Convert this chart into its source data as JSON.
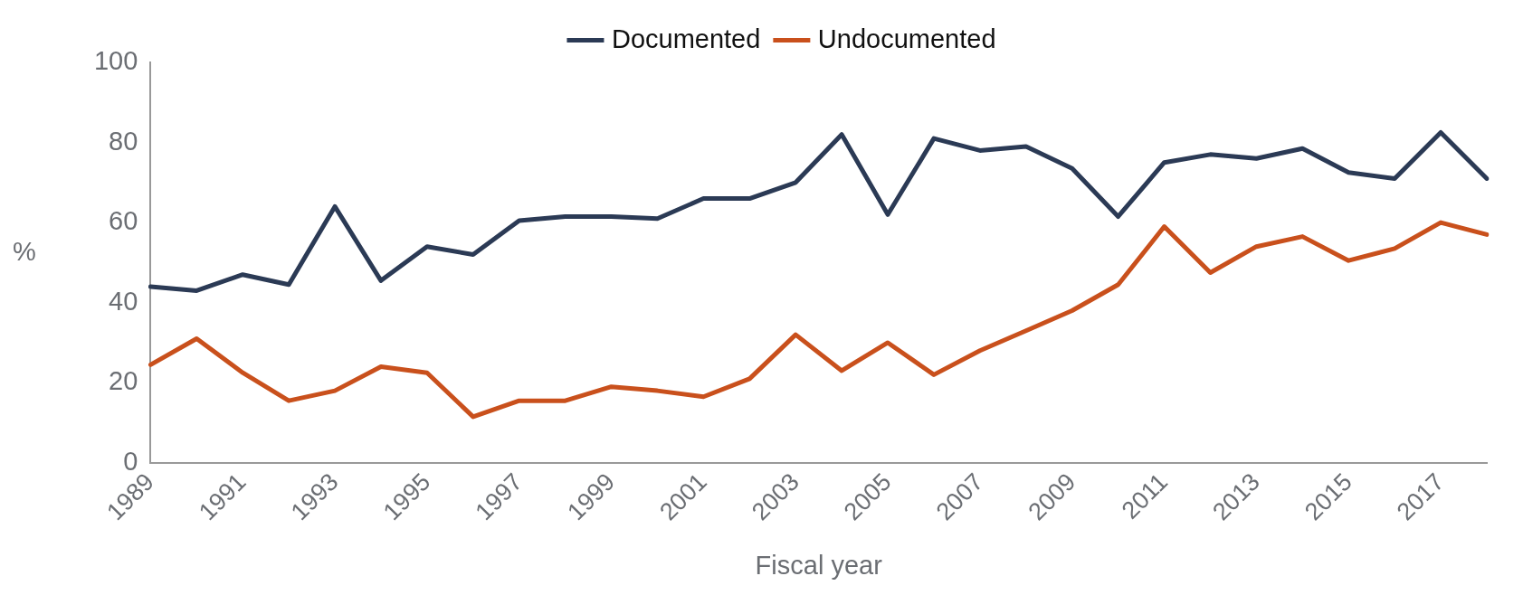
{
  "chart_data": {
    "type": "line",
    "xlabel": "Fiscal year",
    "ylabel": "%",
    "categories": [
      "1989",
      null,
      "1991",
      null,
      "1993",
      null,
      "1995",
      null,
      "1997",
      null,
      "1999",
      null,
      "2001",
      null,
      "2003",
      null,
      "2005",
      null,
      "2007",
      null,
      "2009",
      null,
      "2011",
      null,
      "2013",
      null,
      "2015",
      null,
      "2017",
      null
    ],
    "series": [
      {
        "name": "Documented",
        "color": "#2b3a55",
        "values": [
          44,
          43,
          47,
          44.5,
          64,
          45.5,
          54,
          52,
          60.5,
          61.5,
          61.5,
          61,
          66,
          66,
          70,
          82,
          62,
          81,
          78,
          79,
          73.5,
          61.5,
          75,
          77,
          76,
          78.5,
          72.5,
          71,
          82.5,
          71
        ]
      },
      {
        "name": "Undocumented",
        "color": "#c9501c",
        "values": [
          24.5,
          31,
          22.5,
          15.5,
          18,
          24,
          22.5,
          11.5,
          15.5,
          15.5,
          19,
          18,
          16.5,
          21,
          32,
          23,
          30,
          22,
          28,
          33,
          38,
          44.5,
          59,
          47.5,
          54,
          56.5,
          50.5,
          53.5,
          60,
          57
        ]
      }
    ],
    "ylim": [
      0,
      100
    ],
    "yticks": [
      0,
      20,
      40,
      60,
      80,
      100
    ],
    "grid": false,
    "legend": "top",
    "marker": "none",
    "line_style": "solid"
  }
}
